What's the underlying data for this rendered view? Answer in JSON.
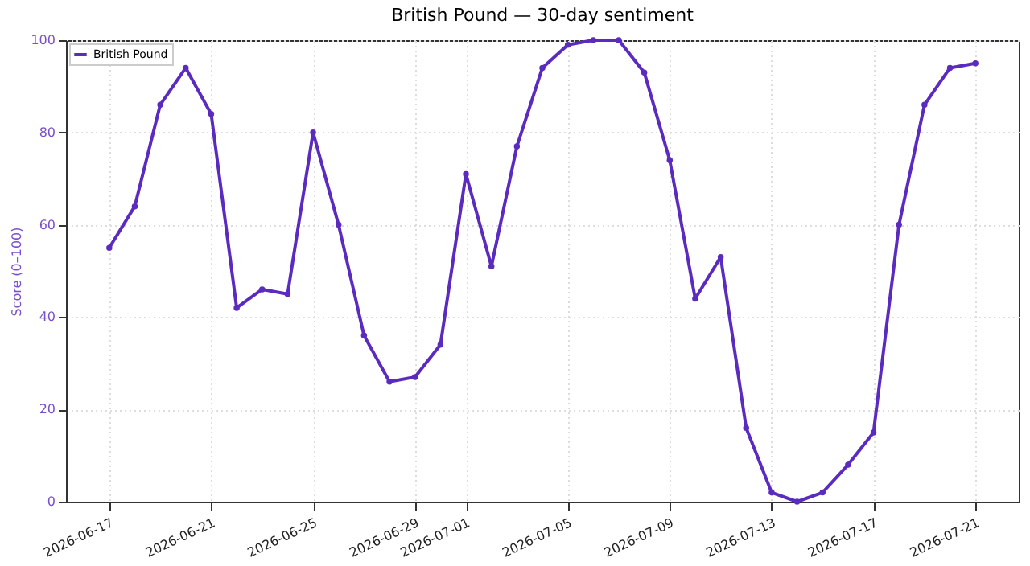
{
  "chart_data": {
    "type": "line",
    "title": "British Pound — 30-day sentiment",
    "ylabel": "Score (0–100)",
    "x": [
      "2026-06-17",
      "2026-06-18",
      "2026-06-19",
      "2026-06-20",
      "2026-06-21",
      "2026-06-22",
      "2026-06-23",
      "2026-06-24",
      "2026-06-25",
      "2026-06-26",
      "2026-06-27",
      "2026-06-28",
      "2026-06-29",
      "2026-06-30",
      "2026-07-01",
      "2026-07-02",
      "2026-07-03",
      "2026-07-04",
      "2026-07-05",
      "2026-07-06",
      "2026-07-07",
      "2026-07-08",
      "2026-07-09",
      "2026-07-10",
      "2026-07-11",
      "2026-07-12",
      "2026-07-13",
      "2026-07-14",
      "2026-07-15",
      "2026-07-16",
      "2026-07-17",
      "2026-07-18",
      "2026-07-19",
      "2026-07-20",
      "2026-07-21"
    ],
    "series": [
      {
        "name": "British Pound",
        "color": "#5b2bc0",
        "values": [
          55,
          64,
          86,
          94,
          84,
          42,
          46,
          45,
          80,
          60,
          36,
          26,
          27,
          34,
          71,
          51,
          77,
          94,
          99,
          100,
          100,
          93,
          74,
          44,
          53,
          16,
          2,
          0,
          2,
          8,
          15,
          60,
          86,
          94,
          95
        ]
      }
    ],
    "xlim": [
      "2026-06-15T07:12",
      "2026-07-22T16:48"
    ],
    "xticks": [
      "2026-06-17",
      "2026-06-21",
      "2026-06-25",
      "2026-06-29",
      "2026-07-01",
      "2026-07-05",
      "2026-07-09",
      "2026-07-13",
      "2026-07-17",
      "2026-07-21"
    ],
    "ylim": [
      0,
      100
    ],
    "yticks": [
      0,
      20,
      40,
      60,
      80,
      100
    ],
    "grid": true,
    "legend": "top left",
    "marker": "circle",
    "line_style": "solid"
  }
}
